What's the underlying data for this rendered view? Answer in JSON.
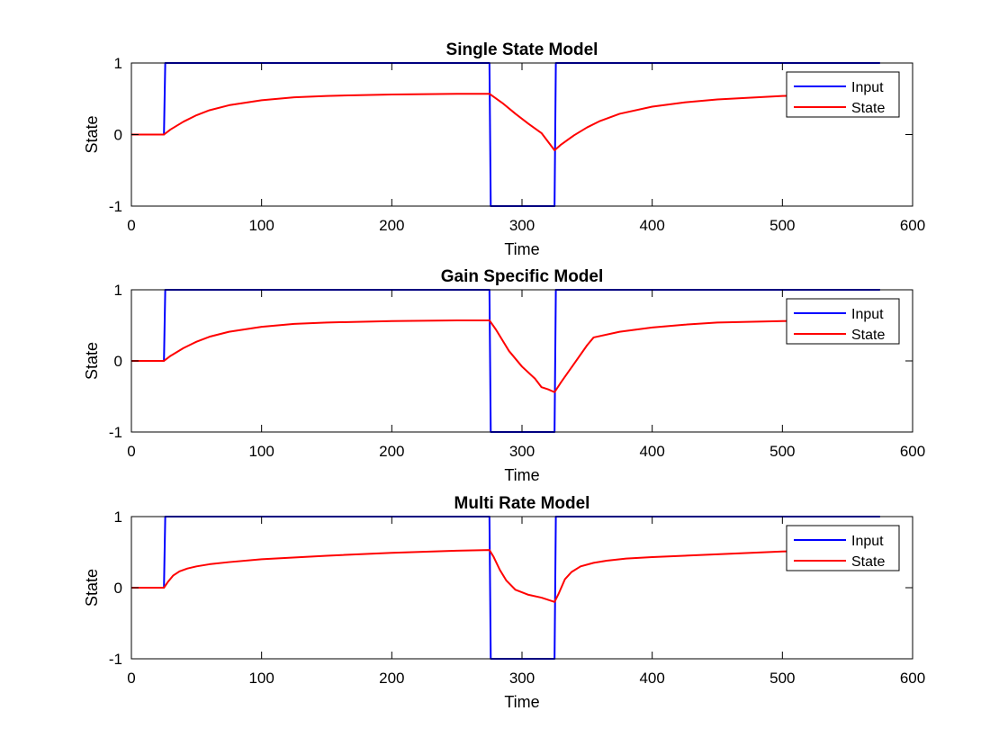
{
  "colors": {
    "input": "#0000ff",
    "state": "#ff0000",
    "axis": "#000000",
    "background": "#ffffff"
  },
  "chart_data": [
    {
      "type": "line",
      "title": "Single State Model",
      "xlabel": "Time",
      "ylabel": "State",
      "xlim": [
        0,
        600
      ],
      "ylim": [
        -1,
        1
      ],
      "xticks": [
        "0",
        "100",
        "200",
        "300",
        "400",
        "500",
        "600"
      ],
      "yticks": [
        "-1",
        "0",
        "1"
      ],
      "legend": {
        "placement": "top-right",
        "entries": [
          "Input",
          "State"
        ]
      },
      "grid": false,
      "series": [
        {
          "name": "Input",
          "color": "#0000ff",
          "x": [
            0,
            25,
            26,
            275,
            276,
            325,
            326,
            575
          ],
          "y": [
            0,
            0,
            1,
            1,
            -1,
            -1,
            1,
            1
          ]
        },
        {
          "name": "State",
          "color": "#ff0000",
          "x": [
            0,
            25,
            30,
            40,
            50,
            60,
            75,
            100,
            125,
            150,
            200,
            250,
            275,
            285,
            295,
            305,
            315,
            325,
            330,
            340,
            350,
            360,
            375,
            400,
            425,
            450,
            500,
            550,
            575
          ],
          "y": [
            0,
            0,
            0.07,
            0.18,
            0.27,
            0.34,
            0.41,
            0.48,
            0.52,
            0.54,
            0.56,
            0.57,
            0.57,
            0.44,
            0.29,
            0.15,
            0.02,
            -0.22,
            -0.14,
            -0.01,
            0.1,
            0.19,
            0.29,
            0.39,
            0.45,
            0.49,
            0.54,
            0.56,
            0.57
          ]
        }
      ]
    },
    {
      "type": "line",
      "title": "Gain Specific Model",
      "xlabel": "Time",
      "ylabel": "State",
      "xlim": [
        0,
        600
      ],
      "ylim": [
        -1,
        1
      ],
      "xticks": [
        "0",
        "100",
        "200",
        "300",
        "400",
        "500",
        "600"
      ],
      "yticks": [
        "-1",
        "0",
        "1"
      ],
      "legend": {
        "placement": "top-right",
        "entries": [
          "Input",
          "State"
        ]
      },
      "grid": false,
      "series": [
        {
          "name": "Input",
          "color": "#0000ff",
          "x": [
            0,
            25,
            26,
            275,
            276,
            325,
            326,
            575
          ],
          "y": [
            0,
            0,
            1,
            1,
            -1,
            -1,
            1,
            1
          ]
        },
        {
          "name": "State",
          "color": "#ff0000",
          "x": [
            0,
            25,
            30,
            40,
            50,
            60,
            75,
            100,
            125,
            150,
            200,
            250,
            275,
            280,
            290,
            300,
            310,
            315,
            320,
            325,
            330,
            340,
            350,
            355,
            375,
            400,
            425,
            450,
            500,
            550,
            575
          ],
          "y": [
            0,
            0,
            0.07,
            0.18,
            0.27,
            0.34,
            0.41,
            0.48,
            0.52,
            0.54,
            0.56,
            0.57,
            0.57,
            0.44,
            0.14,
            -0.08,
            -0.25,
            -0.37,
            -0.4,
            -0.44,
            -0.3,
            -0.04,
            0.22,
            0.33,
            0.41,
            0.47,
            0.51,
            0.54,
            0.56,
            0.57,
            0.57
          ]
        }
      ]
    },
    {
      "type": "line",
      "title": "Multi Rate Model",
      "xlabel": "Time",
      "ylabel": "State",
      "xlim": [
        0,
        600
      ],
      "ylim": [
        -1,
        1
      ],
      "xticks": [
        "0",
        "100",
        "200",
        "300",
        "400",
        "500",
        "600"
      ],
      "yticks": [
        "-1",
        "0",
        "1"
      ],
      "legend": {
        "placement": "top-right",
        "entries": [
          "Input",
          "State"
        ]
      },
      "grid": false,
      "series": [
        {
          "name": "Input",
          "color": "#0000ff",
          "x": [
            0,
            25,
            26,
            275,
            276,
            325,
            326,
            575
          ],
          "y": [
            0,
            0,
            1,
            1,
            -1,
            -1,
            1,
            1
          ]
        },
        {
          "name": "State",
          "color": "#ff0000",
          "x": [
            0,
            25,
            28,
            32,
            37,
            43,
            50,
            60,
            75,
            100,
            150,
            200,
            250,
            275,
            278,
            283,
            288,
            295,
            305,
            315,
            325,
            328,
            333,
            338,
            345,
            355,
            365,
            380,
            400,
            450,
            500,
            550,
            575
          ],
          "y": [
            0,
            0,
            0.08,
            0.17,
            0.23,
            0.27,
            0.3,
            0.33,
            0.36,
            0.4,
            0.45,
            0.49,
            0.52,
            0.53,
            0.44,
            0.25,
            0.1,
            -0.03,
            -0.1,
            -0.14,
            -0.2,
            -0.09,
            0.12,
            0.22,
            0.3,
            0.35,
            0.38,
            0.41,
            0.43,
            0.47,
            0.51,
            0.53,
            0.54
          ]
        }
      ]
    }
  ]
}
